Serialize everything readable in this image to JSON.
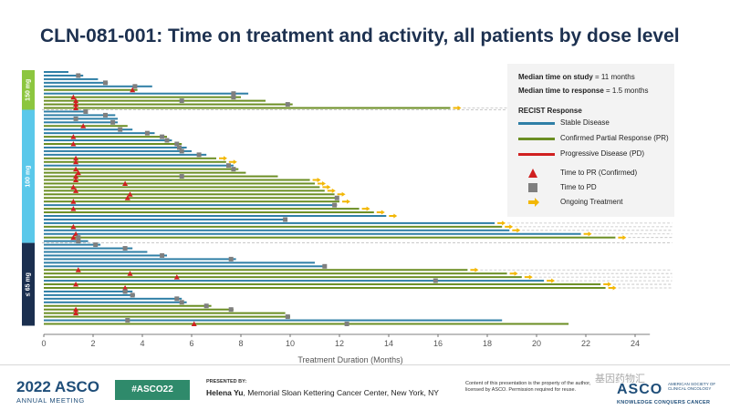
{
  "title": "CLN-081-001: Time on treatment and activity, all patients by dose level",
  "stats": {
    "median_study_label": "Median time on study",
    "median_study_value": "= 11 months",
    "median_response_label": "Median time to response",
    "median_response_value": "= 1.5 months"
  },
  "legend": {
    "heading": "RECIST Response",
    "stable": "Stable Disease",
    "pr": "Confirmed Partial Response (PR)",
    "pd": "Progressive Disease (PD)",
    "time_to_pr": "Time to PR (Confirmed)",
    "time_to_pd": "Time to PD",
    "ongoing": "Ongoing Treatment"
  },
  "colors": {
    "stable": "#2f7fa6",
    "pr": "#6b8e23",
    "pd": "#d02020",
    "marker_pd": "#7f7f7f",
    "ongoing": "#f2b705",
    "dose_150": "#8cc63f",
    "dose_100": "#5ac8ea",
    "dose_65": "#1b2f4f"
  },
  "footer": {
    "year": "2022 ASCO",
    "meeting": "ANNUAL MEETING",
    "hashtag": "#ASCO22",
    "presented_by": "PRESENTED BY:",
    "presenter_name": "Helena Yu",
    "presenter_affiliation": ", Memorial Sloan Kettering Cancer Center, New York, NY",
    "notice": "Content of this presentation is the property of the author, licensed by ASCO. Permission required for reuse.",
    "watermark": "基因药物汇",
    "logo": "ASCO",
    "logo_sub": "AMERICAN SOCIETY OF CLINICAL ONCOLOGY",
    "tagline": "KNOWLEDGE CONQUERS CANCER"
  },
  "chart_data": {
    "type": "bar",
    "orientation": "horizontal",
    "xlabel": "Treatment Duration (Months)",
    "xlim": [
      0,
      24
    ],
    "xticks": [
      0,
      2,
      4,
      6,
      8,
      10,
      12,
      14,
      16,
      18,
      20,
      22,
      24
    ],
    "groups": [
      {
        "label": "150 mg",
        "color_key": "dose_150",
        "first": 0,
        "last": 10
      },
      {
        "label": "100 mg",
        "color_key": "dose_100",
        "first": 11,
        "last": 47
      },
      {
        "label": "≤ 65 mg",
        "color_key": "dose_65",
        "first": 48,
        "last": 70
      }
    ],
    "patients": [
      {
        "d": 1.0,
        "r": "SD"
      },
      {
        "d": 1.6,
        "r": "SD",
        "pd": 1.4
      },
      {
        "d": 2.2,
        "r": "SD"
      },
      {
        "d": 2.6,
        "r": "SD",
        "pd": 2.5
      },
      {
        "d": 4.4,
        "r": "SD",
        "pd": 3.7
      },
      {
        "d": 3.8,
        "r": "PR",
        "pr": 3.6
      },
      {
        "d": 8.3,
        "r": "SD",
        "pd": 7.7
      },
      {
        "d": 8.0,
        "r": "PR",
        "pr": 1.2,
        "pd": 7.7
      },
      {
        "d": 9.0,
        "r": "PR",
        "pr": 1.3,
        "pd": 5.6
      },
      {
        "d": 10.1,
        "r": "PR",
        "pr": 1.3,
        "pd": 9.9
      },
      {
        "d": 16.5,
        "r": "PR",
        "pr": 1.3,
        "ongoing": true
      },
      {
        "d": 1.7,
        "r": "SD",
        "pd": 1.7
      },
      {
        "d": 2.9,
        "r": "SD",
        "pd": 2.5
      },
      {
        "d": 3.0,
        "r": "SD",
        "pd": 1.3
      },
      {
        "d": 3.0,
        "r": "SD",
        "pd": 2.8
      },
      {
        "d": 3.4,
        "r": "PR",
        "pr": 1.6
      },
      {
        "d": 3.6,
        "r": "SD",
        "pd": 3.1
      },
      {
        "d": 4.5,
        "r": "SD",
        "pd": 4.2
      },
      {
        "d": 5.0,
        "r": "PR",
        "pr": 1.2,
        "pd": 4.8
      },
      {
        "d": 5.2,
        "r": "SD",
        "pd": 5.0
      },
      {
        "d": 5.6,
        "r": "PR",
        "pr": 1.2,
        "pd": 5.4
      },
      {
        "d": 5.8,
        "r": "SD",
        "pd": 5.5
      },
      {
        "d": 6.0,
        "r": "SD",
        "pd": 5.6
      },
      {
        "d": 6.6,
        "r": "SD",
        "pd": 6.3
      },
      {
        "d": 7.0,
        "r": "PR",
        "pr": 1.3,
        "ongoing": true
      },
      {
        "d": 7.4,
        "r": "PR",
        "pr": 1.3,
        "ongoing": true
      },
      {
        "d": 7.7,
        "r": "SD",
        "pd": 7.5
      },
      {
        "d": 7.9,
        "r": "PR",
        "pr": 1.3,
        "pd": 7.7
      },
      {
        "d": 8.2,
        "r": "PR",
        "pr": 1.4
      },
      {
        "d": 9.5,
        "r": "PR",
        "pr": 1.3,
        "pd": 5.6
      },
      {
        "d": 10.8,
        "r": "PR",
        "pr": 1.3,
        "ongoing": true
      },
      {
        "d": 11.0,
        "r": "PR",
        "pr": 3.3,
        "ongoing": true
      },
      {
        "d": 11.2,
        "r": "PR",
        "pr": 1.2,
        "ongoing": true
      },
      {
        "d": 11.4,
        "r": "PR",
        "pr": 1.3,
        "ongoing": true
      },
      {
        "d": 11.8,
        "r": "PR",
        "pr": 3.5,
        "ongoing": true
      },
      {
        "d": 11.9,
        "r": "PR",
        "pr": 3.4,
        "pd": 11.9
      },
      {
        "d": 12.0,
        "r": "PR",
        "pr": 1.2,
        "ongoing": true
      },
      {
        "d": 11.9,
        "r": "SD",
        "pd": 11.8
      },
      {
        "d": 12.8,
        "r": "PR",
        "pr": 1.2,
        "ongoing": true
      },
      {
        "d": 13.4,
        "r": "PR",
        "ongoing": true
      },
      {
        "d": 13.9,
        "r": "SD",
        "ongoing": true
      },
      {
        "d": 9.8,
        "r": "SD",
        "pd": 9.8
      },
      {
        "d": 18.3,
        "r": "SD",
        "ongoing": true
      },
      {
        "d": 18.6,
        "r": "PR",
        "pr": 1.2,
        "ongoing": true
      },
      {
        "d": 18.9,
        "r": "SD",
        "ongoing": true
      },
      {
        "d": 21.8,
        "r": "SD",
        "pr": 1.3,
        "ongoing": true
      },
      {
        "d": 23.2,
        "r": "PR",
        "pr": 1.2,
        "pd": 1.4,
        "ongoing": true
      },
      {
        "d": 1.8,
        "r": "SD",
        "pd": 1.4
      },
      {
        "d": 2.3,
        "r": "SD",
        "pd": 2.1
      },
      {
        "d": 3.6,
        "r": "SD",
        "pd": 3.3
      },
      {
        "d": 4.2,
        "r": "SD"
      },
      {
        "d": 5.0,
        "r": "SD",
        "pd": 4.8
      },
      {
        "d": 7.8,
        "r": "SD",
        "pd": 7.6
      },
      {
        "d": 11.0,
        "r": "SD"
      },
      {
        "d": 11.4,
        "r": "SD",
        "pd": 11.4
      },
      {
        "d": 17.2,
        "r": "PR",
        "pr": 1.4,
        "ongoing": true
      },
      {
        "d": 18.8,
        "r": "PR",
        "pr": 3.5,
        "ongoing": true
      },
      {
        "d": 19.4,
        "r": "PR",
        "pr": 5.4,
        "ongoing": true
      },
      {
        "d": 20.3,
        "r": "SD",
        "pd": 15.9,
        "ongoing": true
      },
      {
        "d": 22.6,
        "r": "PR",
        "pr": 1.3,
        "ongoing": true
      },
      {
        "d": 22.8,
        "r": "PR",
        "pr": 3.3,
        "ongoing": true
      },
      {
        "d": 3.6,
        "r": "SD",
        "pd": 3.3
      },
      {
        "d": 3.7,
        "r": "SD",
        "pd": 3.6
      },
      {
        "d": 5.6,
        "r": "SD",
        "pd": 5.4
      },
      {
        "d": 5.8,
        "r": "SD",
        "pd": 5.6
      },
      {
        "d": 6.8,
        "r": "PR",
        "pd": 6.6
      },
      {
        "d": 7.7,
        "r": "PR",
        "pr": 1.3,
        "pd": 7.6
      },
      {
        "d": 9.8,
        "r": "PR",
        "pr": 1.3
      },
      {
        "d": 10.0,
        "r": "PR",
        "pd": 9.9
      },
      {
        "d": 18.6,
        "r": "SD",
        "pd": 3.4
      },
      {
        "d": 21.3,
        "r": "PR",
        "pr": 6.1,
        "pd": 12.3
      }
    ]
  }
}
